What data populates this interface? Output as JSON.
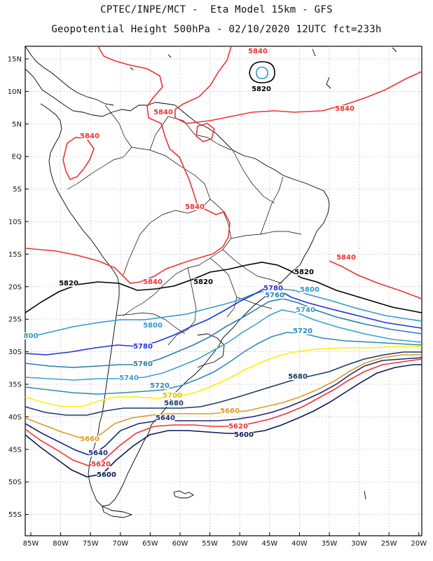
{
  "header": {
    "line1": "CPTEC/INPE/MCT -  Eta Model 15km - GFS",
    "line2": "Geopotential Height 500hPa - 02/10/2020 12UTC fct=233h"
  },
  "map": {
    "lat_ticks": [
      "15N",
      "10N",
      "5N",
      "EQ",
      "5S",
      "10S",
      "15S",
      "20S",
      "25S",
      "30S",
      "35S",
      "40S",
      "45S",
      "50S",
      "55S"
    ],
    "lon_ticks": [
      "85W",
      "80W",
      "75W",
      "70W",
      "65W",
      "60W",
      "55W",
      "50W",
      "45W",
      "40W",
      "35W",
      "30W",
      "25W",
      "20W"
    ],
    "grid": true,
    "contour_interval_m": 20,
    "contours": [
      {
        "value": 5840,
        "color": "#ee3333"
      },
      {
        "value": 5820,
        "color": "#000000"
      },
      {
        "value": 5800,
        "color": "#3399cc"
      },
      {
        "value": 5780,
        "color": "#2233dd"
      },
      {
        "value": 5760,
        "color": "#2a7fa8"
      },
      {
        "value": 5740,
        "color": "#3aa0d0"
      },
      {
        "value": 5720,
        "color": "#2e8ab8"
      },
      {
        "value": 5700,
        "color": "#ffee00"
      },
      {
        "value": 5680,
        "color": "#1a3a6b"
      },
      {
        "value": 5660,
        "color": "#dd9922"
      },
      {
        "value": 5640,
        "color": "#1a2a7a"
      },
      {
        "value": 5620,
        "color": "#ee3333"
      },
      {
        "value": 5600,
        "color": "#0a1a55"
      }
    ],
    "labels": [
      {
        "text": "5840",
        "color": "#ee3333"
      },
      {
        "text": "5820",
        "color": "#000000"
      },
      {
        "text": "5840",
        "color": "#ee3333"
      },
      {
        "text": "5840",
        "color": "#ee3333"
      },
      {
        "text": "5840",
        "color": "#ee3333"
      },
      {
        "text": "5840",
        "color": "#ee3333"
      },
      {
        "text": "5840",
        "color": "#ee3333"
      },
      {
        "text": "5840",
        "color": "#ee3333"
      },
      {
        "text": "5820",
        "color": "#000000"
      },
      {
        "text": "5820",
        "color": "#000000"
      },
      {
        "text": "5820",
        "color": "#000000"
      },
      {
        "text": "5780",
        "color": "#2233dd"
      },
      {
        "text": "5800",
        "color": "#3399cc"
      },
      {
        "text": "5760",
        "color": "#2a7fa8"
      },
      {
        "text": "5740",
        "color": "#3aa0d0"
      },
      {
        "text": "5800",
        "color": "#3399cc"
      },
      {
        "text": "5720",
        "color": "#2e8ab8"
      },
      {
        "text": "800",
        "color": "#3399cc"
      },
      {
        "text": "5780",
        "color": "#2233dd"
      },
      {
        "text": "5760",
        "color": "#2a7fa8"
      },
      {
        "text": "5740",
        "color": "#3aa0d0"
      },
      {
        "text": "5720",
        "color": "#2e8ab8"
      },
      {
        "text": "5700",
        "color": "#e0c000"
      },
      {
        "text": "5680",
        "color": "#1a3a6b"
      },
      {
        "text": "5680",
        "color": "#1a3a6b"
      },
      {
        "text": "5660",
        "color": "#dd9922"
      },
      {
        "text": "5640",
        "color": "#1a2a7a"
      },
      {
        "text": "5620",
        "color": "#ee3333"
      },
      {
        "text": "5600",
        "color": "#0a1a55"
      },
      {
        "text": "5660",
        "color": "#dd9922"
      },
      {
        "text": "5640",
        "color": "#1a2a7a"
      },
      {
        "text": "5620",
        "color": "#ee3333"
      },
      {
        "text": "5600",
        "color": "#0a1a55"
      }
    ]
  }
}
